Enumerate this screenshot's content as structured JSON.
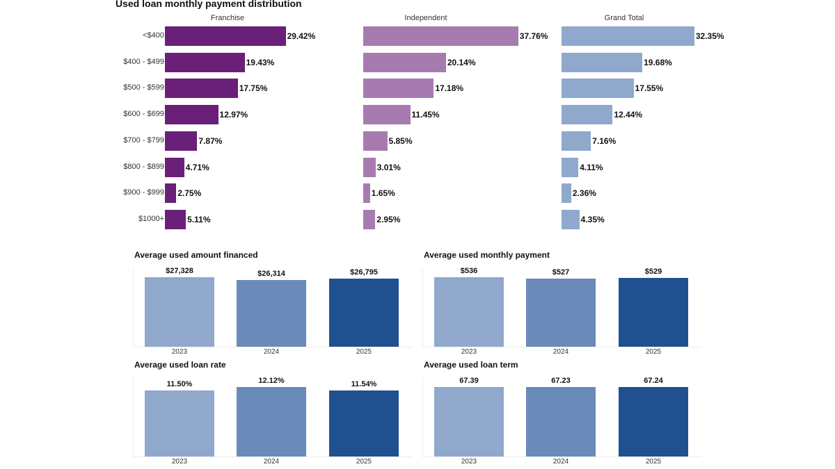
{
  "title": "Used loan monthly payment distribution",
  "chart_data": [
    {
      "type": "bar",
      "orientation": "horizontal",
      "categories": [
        "<$400",
        "$400 - $499",
        "$500 - $599",
        "$600 - $699",
        "$700 - $799",
        "$800 - $899",
        "$900 - $999",
        "$1000+"
      ],
      "series": [
        {
          "name": "Franchise",
          "color": "#6a1f78",
          "values": [
            29.42,
            19.43,
            17.75,
            12.97,
            7.87,
            4.71,
            2.75,
            5.11
          ],
          "labels": [
            "29.42%",
            "19.43%",
            "17.75%",
            "12.97%",
            "7.87%",
            "4.71%",
            "2.75%",
            "5.11%"
          ]
        },
        {
          "name": "Independent",
          "color": "#a87bb0",
          "values": [
            37.76,
            20.14,
            17.18,
            11.45,
            5.85,
            3.01,
            1.65,
            2.95
          ],
          "labels": [
            "37.76%",
            "20.14%",
            "17.18%",
            "11.45%",
            "5.85%",
            "3.01%",
            "1.65%",
            "2.95%"
          ]
        },
        {
          "name": "Grand Total",
          "color": "#8fa8cc",
          "values": [
            32.35,
            19.68,
            17.55,
            12.44,
            7.16,
            4.11,
            2.36,
            4.35
          ],
          "labels": [
            "32.35%",
            "19.68%",
            "17.55%",
            "12.44%",
            "7.16%",
            "4.11%",
            "2.36%",
            "4.35%"
          ]
        }
      ]
    },
    {
      "type": "bar",
      "title": "Average used amount financed",
      "categories": [
        "2023",
        "2024",
        "2025"
      ],
      "values": [
        27328,
        26314,
        26795
      ],
      "labels": [
        "$27,328",
        "$26,314",
        "$26,795"
      ],
      "colors": [
        "#8fa8cc",
        "#6a8ab9",
        "#1f5090"
      ]
    },
    {
      "type": "bar",
      "title": "Average used monthly payment",
      "categories": [
        "2023",
        "2024",
        "2025"
      ],
      "values": [
        536,
        527,
        529
      ],
      "labels": [
        "$536",
        "$527",
        "$529"
      ],
      "colors": [
        "#8fa8cc",
        "#6a8ab9",
        "#1f5090"
      ]
    },
    {
      "type": "bar",
      "title": "Average used loan rate",
      "categories": [
        "2023",
        "2024",
        "2025"
      ],
      "values": [
        11.5,
        12.12,
        11.54
      ],
      "labels": [
        "11.50%",
        "12.12%",
        "11.54%"
      ],
      "colors": [
        "#8fa8cc",
        "#6a8ab9",
        "#1f5090"
      ]
    },
    {
      "type": "bar",
      "title": "Average used loan term",
      "categories": [
        "2023",
        "2024",
        "2025"
      ],
      "values": [
        67.39,
        67.23,
        67.24
      ],
      "labels": [
        "67.39",
        "67.23",
        "67.24"
      ],
      "colors": [
        "#8fa8cc",
        "#6a8ab9",
        "#1f5090"
      ]
    }
  ]
}
